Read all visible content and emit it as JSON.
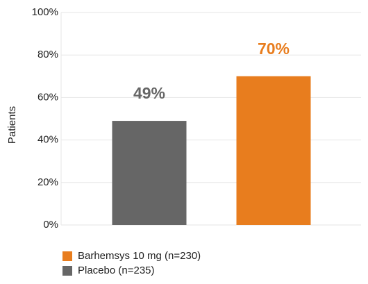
{
  "chart_data": {
    "type": "bar",
    "y_label": "Patients",
    "categories": [
      null,
      null
    ],
    "series": [
      {
        "name": "Barhemsys 10 mg (n=230)",
        "color": "#e87d1e",
        "values": [
          null,
          70
        ],
        "value_labels": [
          null,
          "70%"
        ]
      },
      {
        "name": "Placebo (n=235)",
        "color": "#666666",
        "values": [
          49,
          null
        ],
        "value_labels": [
          "49%",
          null
        ]
      }
    ],
    "ylim": [
      0,
      100
    ],
    "yticks": [
      {
        "value": 0,
        "label": "0%"
      },
      {
        "value": 20,
        "label": "20%"
      },
      {
        "value": 40,
        "label": "40%"
      },
      {
        "value": 60,
        "label": "60%"
      },
      {
        "value": 80,
        "label": "80%"
      },
      {
        "value": 100,
        "label": "100%"
      }
    ],
    "grid": true
  }
}
